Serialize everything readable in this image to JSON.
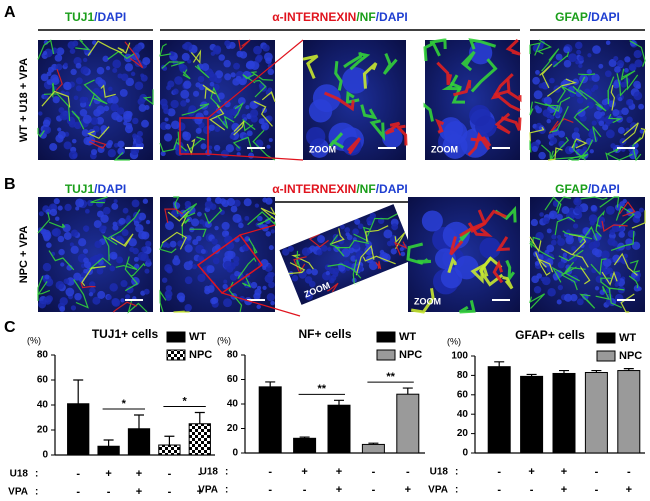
{
  "panels": [
    {
      "letter": "A",
      "side_label": "WT + U18 + VPA",
      "headers": [
        [
          {
            "text": "TUJ1",
            "color": "#1a9e1a"
          },
          {
            "text": "/DAPI",
            "color": "#1f3fd1"
          }
        ],
        [
          {
            "text": "α-INTERNEXIN",
            "color": "#e0141e"
          },
          {
            "text": "/NF",
            "color": "#1a9e1a"
          },
          {
            "text": "/DAPI",
            "color": "#1f3fd1"
          }
        ],
        [
          {
            "text": "GFAP",
            "color": "#1a9e1a"
          },
          {
            "text": "/DAPI",
            "color": "#1f3fd1"
          }
        ]
      ],
      "zoom_labels": [
        "ZOOM",
        "ZOOM"
      ]
    },
    {
      "letter": "B",
      "side_label": "NPC + VPA",
      "headers": [
        [
          {
            "text": "TUJ1",
            "color": "#1a9e1a"
          },
          {
            "text": "/DAPI",
            "color": "#1f3fd1"
          }
        ],
        [
          {
            "text": "α-INTERNEXIN",
            "color": "#e0141e"
          },
          {
            "text": "/NF",
            "color": "#1a9e1a"
          },
          {
            "text": "/DAPI",
            "color": "#1f3fd1"
          }
        ],
        [
          {
            "text": "GFAP",
            "color": "#1a9e1a"
          },
          {
            "text": "/DAPI",
            "color": "#1f3fd1"
          }
        ]
      ],
      "zoom_labels": [
        "ZOOM",
        "ZOOM"
      ]
    },
    {
      "letter": "C"
    }
  ],
  "chart_data": [
    {
      "type": "bar",
      "title": "TUJ1+ cells",
      "ylabel": "(%)",
      "ylim": [
        0,
        80
      ],
      "yticks": [
        0,
        20,
        40,
        60,
        80
      ],
      "legend": "upper-right",
      "series": [
        {
          "name": "WT",
          "color": "#000000",
          "values": [
            41,
            7,
            21,
            null,
            null
          ],
          "errors": [
            19,
            5,
            11,
            null,
            null
          ]
        },
        {
          "name": "NPC",
          "color": "#ffffff",
          "pattern": "checker",
          "values": [
            null,
            null,
            null,
            8,
            25
          ],
          "errors": [
            null,
            null,
            null,
            7,
            9
          ]
        }
      ],
      "rows": [
        {
          "label": "U18",
          "separator": ":",
          "values": [
            "-",
            "+",
            "+",
            "-",
            "-"
          ]
        },
        {
          "label": "VPA",
          "separator": ":",
          "values": [
            "-",
            "-",
            "+",
            "-",
            "+"
          ]
        }
      ],
      "brackets": [
        {
          "label": "*",
          "between": [
            1,
            2
          ]
        },
        {
          "label": "*",
          "between": [
            3,
            4
          ]
        }
      ]
    },
    {
      "type": "bar",
      "title": "NF+ cells",
      "ylabel": "(%)",
      "ylim": [
        0,
        80
      ],
      "yticks": [
        0,
        20,
        40,
        60,
        80
      ],
      "legend": "upper-right",
      "series": [
        {
          "name": "WT",
          "color": "#000000",
          "values": [
            54,
            12,
            39,
            null,
            null
          ],
          "errors": [
            4,
            1,
            4,
            null,
            null
          ]
        },
        {
          "name": "NPC",
          "color": "#9a9a9a",
          "values": [
            null,
            null,
            null,
            7,
            48
          ],
          "errors": [
            null,
            null,
            null,
            1,
            5
          ]
        }
      ],
      "rows": [
        {
          "label": "U18",
          "separator": ":",
          "values": [
            "-",
            "+",
            "+",
            "-",
            "-"
          ]
        },
        {
          "label": "VPA",
          "separator": ":",
          "values": [
            "-",
            "-",
            "+",
            "-",
            "+"
          ]
        }
      ],
      "brackets": [
        {
          "label": "**",
          "between": [
            1,
            2
          ]
        },
        {
          "label": "**",
          "between": [
            3,
            4
          ]
        }
      ]
    },
    {
      "type": "bar",
      "title": "GFAP+ cells",
      "ylabel": "(%)",
      "ylim": [
        0,
        100
      ],
      "yticks": [
        0,
        20,
        40,
        60,
        80,
        100
      ],
      "legend": "upper-right",
      "series": [
        {
          "name": "WT",
          "color": "#000000",
          "values": [
            89,
            79,
            82,
            null,
            null
          ],
          "errors": [
            5,
            2,
            3,
            null,
            null
          ]
        },
        {
          "name": "NPC",
          "color": "#9a9a9a",
          "values": [
            null,
            null,
            null,
            83,
            85
          ],
          "errors": [
            null,
            null,
            null,
            2,
            2
          ]
        }
      ],
      "rows": [
        {
          "label": "U18",
          "separator": ":",
          "values": [
            "-",
            "+",
            "+",
            "-",
            "-"
          ]
        },
        {
          "label": "VPA",
          "separator": ":",
          "values": [
            "-",
            "-",
            "+",
            "-",
            "+"
          ]
        }
      ],
      "brackets": []
    }
  ]
}
